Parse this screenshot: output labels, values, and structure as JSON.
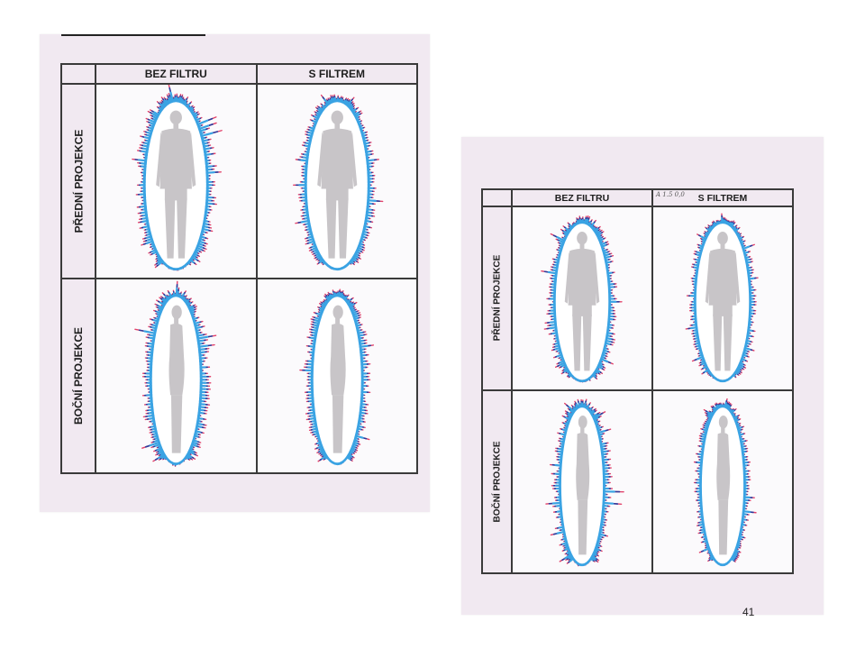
{
  "photos": [
    {
      "headers": {
        "col1": "BEZ FILTRU",
        "col2": "S FILTREM"
      },
      "rows": [
        {
          "label": "PŘEDNÍ PROJEKCE"
        },
        {
          "label": "BOČNÍ PROJEKCE"
        }
      ]
    },
    {
      "headers": {
        "col1": "BEZ FILTRU",
        "col2": "S FILTREM"
      },
      "handwritten_note": "A 1.5 0,0",
      "rows": [
        {
          "label": "PŘEDNÍ PROJEKCE"
        },
        {
          "label": "BOČNÍ PROJEKCE"
        }
      ],
      "page_number": "41"
    }
  ],
  "colors": {
    "paper": "#f1e9f1",
    "aura_blue": "#3aa3e3",
    "aura_dark": "#2e3a9a",
    "aura_red": "#e2416a",
    "silhouette": "#c8c5c8",
    "grid_line": "#3a3a3a"
  }
}
